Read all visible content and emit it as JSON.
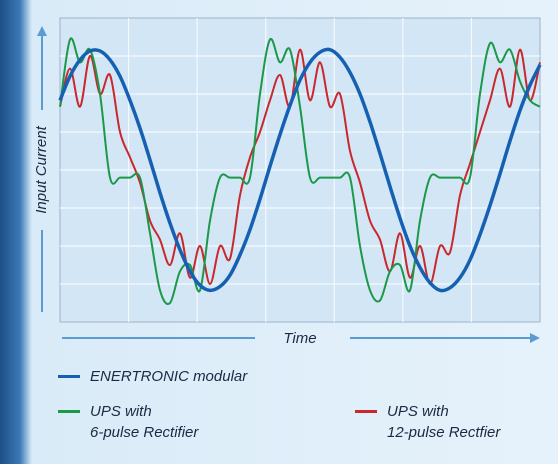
{
  "chart_data": {
    "type": "line",
    "xlabel": "Time",
    "ylabel": "Input Current",
    "x": [
      0,
      1,
      2,
      3,
      4,
      5,
      6,
      7,
      8,
      9,
      10,
      11,
      12,
      13,
      14,
      15,
      16,
      17,
      18,
      19,
      20,
      21,
      22,
      23,
      24,
      25,
      26,
      27,
      28,
      29,
      30,
      31,
      32,
      33,
      34,
      35,
      36,
      37,
      38,
      39,
      40,
      41,
      42,
      43,
      44,
      45,
      46,
      47,
      48
    ],
    "xlim": [
      0,
      48
    ],
    "ylim": [
      -1.2,
      1.2
    ],
    "grid": true,
    "legend": "bottom",
    "series": [
      {
        "name": "ENERTRONIC modular",
        "color": "#1660b2",
        "values": [
          0.55,
          0.74,
          0.87,
          0.94,
          0.94,
          0.87,
          0.74,
          0.55,
          0.33,
          0.08,
          -0.18,
          -0.42,
          -0.63,
          -0.8,
          -0.91,
          -0.95,
          -0.92,
          -0.83,
          -0.67,
          -0.47,
          -0.23,
          0.03,
          0.28,
          0.51,
          0.71,
          0.85,
          0.93,
          0.95,
          0.89,
          0.77,
          0.6,
          0.38,
          0.13,
          -0.13,
          -0.38,
          -0.6,
          -0.77,
          -0.89,
          -0.95,
          -0.93,
          -0.85,
          -0.71,
          -0.51,
          -0.28,
          -0.03,
          0.23,
          0.47,
          0.67,
          0.83
        ]
      },
      {
        "name": "UPS with\n6-pulse Rectifier",
        "color": "#1b9848",
        "values": [
          0.5,
          1.03,
          0.85,
          0.95,
          0.6,
          -0.06,
          -0.06,
          -0.06,
          -0.06,
          -0.5,
          -0.95,
          -1.05,
          -0.8,
          -0.75,
          -0.95,
          -0.4,
          -0.06,
          -0.06,
          -0.06,
          -0.06,
          0.6,
          1.03,
          0.85,
          0.95,
          0.5,
          -0.06,
          -0.06,
          -0.06,
          -0.06,
          -0.06,
          -0.6,
          -0.95,
          -1.03,
          -0.8,
          -0.75,
          -0.95,
          -0.4,
          -0.06,
          -0.06,
          -0.06,
          -0.06,
          -0.06,
          0.6,
          1.0,
          0.85,
          0.95,
          0.7,
          0.55,
          0.5
        ]
      },
      {
        "name": "UPS with\n12-pulse Rectfier",
        "color": "#c8282e",
        "values": [
          0.5,
          0.8,
          0.5,
          0.9,
          0.6,
          0.75,
          0.3,
          0.1,
          -0.1,
          -0.4,
          -0.55,
          -0.75,
          -0.5,
          -0.85,
          -0.6,
          -0.9,
          -0.6,
          -0.7,
          -0.2,
          0.1,
          0.3,
          0.55,
          0.75,
          0.5,
          0.95,
          0.55,
          0.85,
          0.5,
          0.6,
          0.15,
          -0.1,
          -0.4,
          -0.55,
          -0.8,
          -0.5,
          -0.85,
          -0.6,
          -0.9,
          -0.6,
          -0.65,
          -0.2,
          0.05,
          0.3,
          0.55,
          0.8,
          0.5,
          0.95,
          0.55,
          0.85
        ]
      }
    ]
  }
}
